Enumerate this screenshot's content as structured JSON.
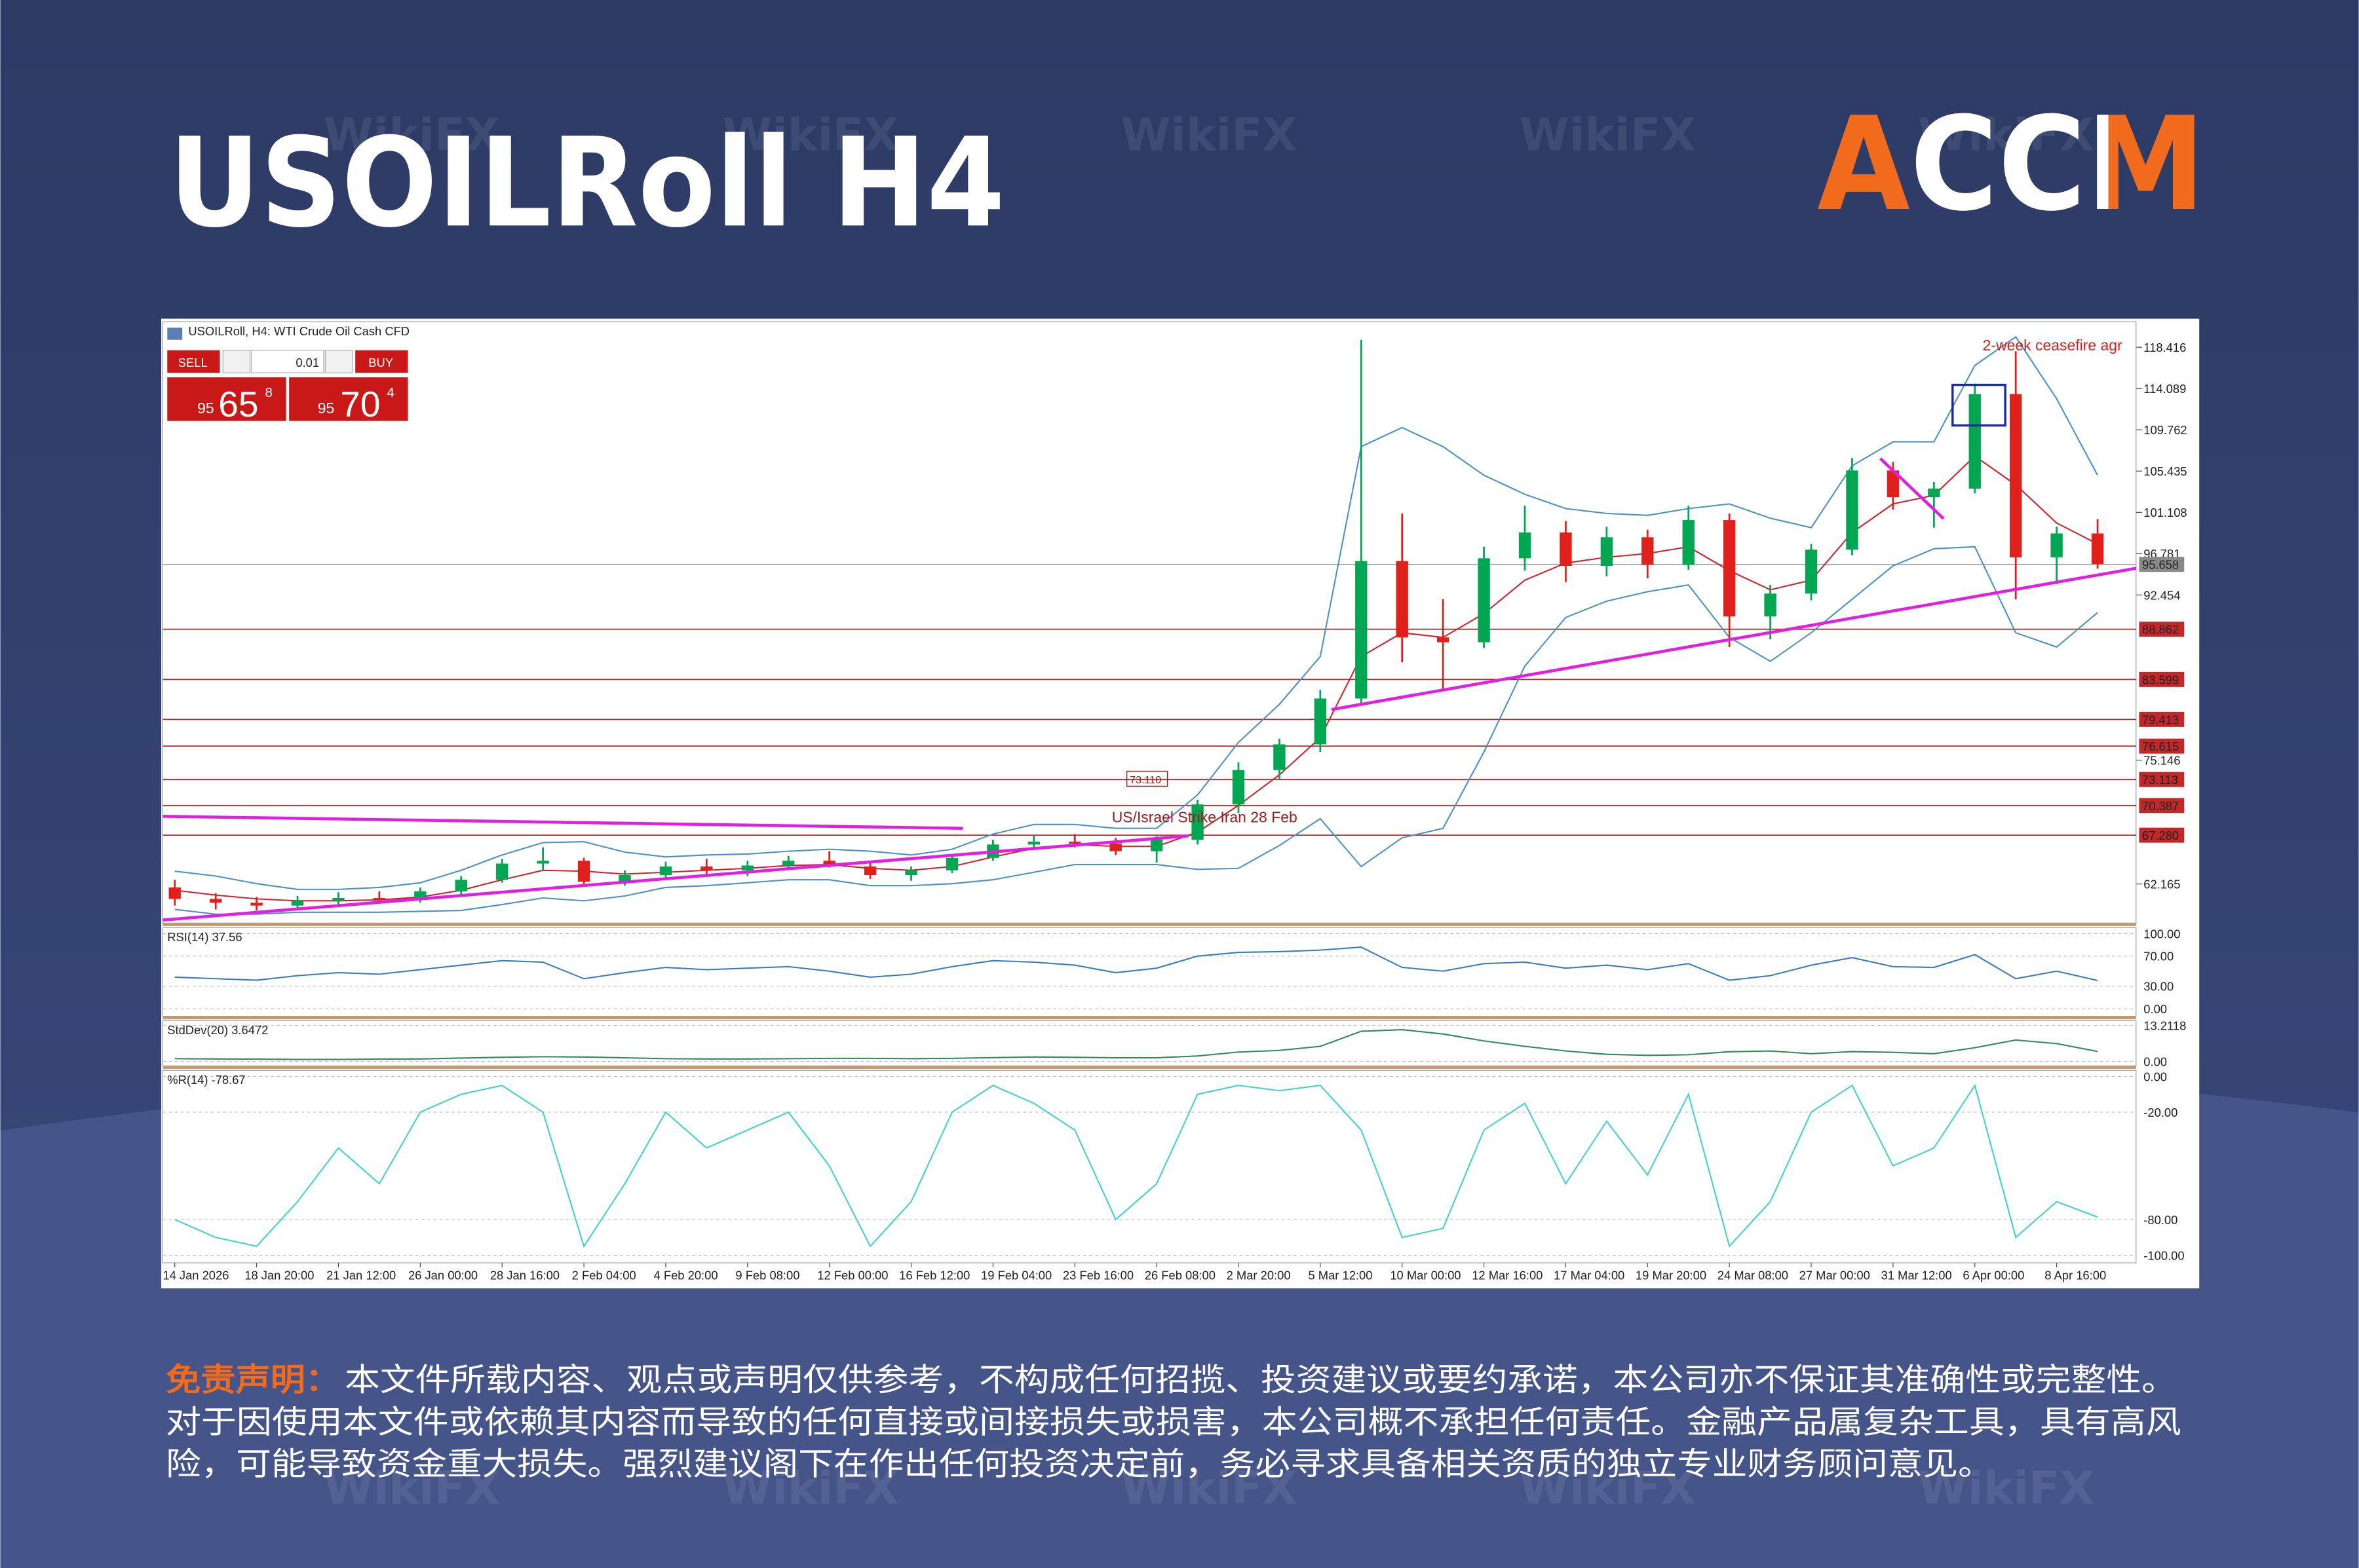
{
  "header": {
    "title": "USOILRoll H4",
    "logo": "ACCM"
  },
  "watermark": "WikiFX",
  "chart_data": {
    "type": "candlestick",
    "title": "USOILRoll, H4:  WTI Crude Oil Cash CFD",
    "trade_panel": {
      "sell": "SELL",
      "buy": "BUY",
      "volume": 0.01,
      "sell_price": {
        "big_figure": 95,
        "pips": 65,
        "point": 8
      },
      "buy_price": {
        "big_figure": 95,
        "pips": 70,
        "point": 4
      }
    },
    "categories": [
      "14 Jan 2026",
      null,
      "18 Jan 20:00",
      null,
      "21 Jan 12:00",
      null,
      "26 Jan 00:00",
      null,
      "28 Jan 16:00",
      null,
      "2 Feb 04:00",
      null,
      "4 Feb 20:00",
      null,
      "9 Feb 08:00",
      null,
      "12 Feb 00:00",
      null,
      "16 Feb 12:00",
      null,
      "19 Feb 04:00",
      null,
      "23 Feb 16:00",
      null,
      "26 Feb 08:00",
      null,
      "2 Mar 20:00",
      null,
      "5 Mar 12:00",
      null,
      "10 Mar 00:00",
      null,
      "12 Mar 16:00",
      null,
      "17 Mar 04:00",
      null,
      "19 Mar 20:00",
      null,
      "24 Mar 08:00",
      null,
      "27 Mar 00:00",
      null,
      "31 Mar 12:00",
      null,
      "6 Apr 00:00",
      null,
      "8 Apr 16:00",
      null
    ],
    "open": [
      61.8,
      60.6,
      60.2,
      59.9,
      60.4,
      60.7,
      60.5,
      61.4,
      62.6,
      64.3,
      64.6,
      62.4,
      63.1,
      64.0,
      63.6,
      64.1,
      64.6,
      64.0,
      63.1,
      63.6,
      64.9,
      66.3,
      66.6,
      66.4,
      65.6,
      66.8,
      70.5,
      74.1,
      76.8,
      81.6,
      96.0,
      88.0,
      87.5,
      96.3,
      99.0,
      95.5,
      98.5,
      95.6,
      100.3,
      90.2,
      92.6,
      97.2,
      105.5,
      102.7,
      103.6,
      113.5,
      96.4,
      98.9
    ],
    "high": [
      62.6,
      61.2,
      60.8,
      60.9,
      61.3,
      61.4,
      61.8,
      63.0,
      64.8,
      66.0,
      64.9,
      63.6,
      64.5,
      64.8,
      64.6,
      65.1,
      65.6,
      64.4,
      64.0,
      65.2,
      66.8,
      67.3,
      67.4,
      67.0,
      67.2,
      71.0,
      74.9,
      77.4,
      82.5,
      119.2,
      101.0,
      92.0,
      97.5,
      101.8,
      100.2,
      99.6,
      99.3,
      101.8,
      101.0,
      93.5,
      97.8,
      106.8,
      106.4,
      104.3,
      114.6,
      118.0,
      99.6,
      100.4
    ],
    "low": [
      59.9,
      59.5,
      59.4,
      59.6,
      60.0,
      60.1,
      60.2,
      61.0,
      62.3,
      63.6,
      61.9,
      62.0,
      62.7,
      63.2,
      63.0,
      63.7,
      63.9,
      62.7,
      62.5,
      63.3,
      64.6,
      65.7,
      66.0,
      65.2,
      64.4,
      66.3,
      69.6,
      73.2,
      76.0,
      81.0,
      85.4,
      82.6,
      86.9,
      95.0,
      93.8,
      94.4,
      94.2,
      95.1,
      87.0,
      87.8,
      91.9,
      96.6,
      101.4,
      99.5,
      103.1,
      92.0,
      93.6,
      95.2
    ],
    "close": [
      60.6,
      60.2,
      59.9,
      60.4,
      60.7,
      60.5,
      61.4,
      62.6,
      64.3,
      64.6,
      62.4,
      63.1,
      64.0,
      63.6,
      64.1,
      64.6,
      64.0,
      63.1,
      63.6,
      64.9,
      66.3,
      66.6,
      66.4,
      65.6,
      66.8,
      70.5,
      74.1,
      76.8,
      81.6,
      96.0,
      88.0,
      87.5,
      96.3,
      99.0,
      95.5,
      98.5,
      95.6,
      100.3,
      90.2,
      92.6,
      97.2,
      105.5,
      102.7,
      103.6,
      113.5,
      96.4,
      98.9,
      95.7
    ],
    "up_color": "#00a651",
    "down_color": "#e0201a",
    "moving_average": {
      "color": "#d0202a",
      "values": [
        61.5,
        61.0,
        60.6,
        60.4,
        60.4,
        60.5,
        60.8,
        61.5,
        62.6,
        63.6,
        63.5,
        63.2,
        63.4,
        63.6,
        63.8,
        64.1,
        64.2,
        63.8,
        63.6,
        64.0,
        65.0,
        65.9,
        66.3,
        66.1,
        66.1,
        67.6,
        70.4,
        73.6,
        77.5,
        86.0,
        88.5,
        88.0,
        90.5,
        94.0,
        95.8,
        96.4,
        96.8,
        97.5,
        95.0,
        93.0,
        94.0,
        99.0,
        102.0,
        102.9,
        107.0,
        104.0,
        100.0,
        97.8
      ]
    },
    "bollinger_upper": {
      "color": "#4a8fc8",
      "values": [
        63.5,
        63.0,
        62.2,
        61.6,
        61.6,
        61.8,
        62.3,
        63.6,
        65.2,
        66.5,
        66.6,
        65.5,
        65.0,
        65.2,
        65.3,
        65.6,
        65.8,
        65.6,
        65.2,
        65.8,
        67.4,
        68.4,
        68.4,
        68.0,
        68.0,
        71.5,
        77.0,
        81.0,
        86.0,
        108.0,
        110.0,
        108.0,
        105.0,
        103.0,
        101.5,
        101.0,
        100.8,
        101.5,
        102.0,
        100.5,
        99.5,
        106.0,
        108.5,
        108.5,
        116.5,
        119.5,
        113.0,
        105.0
      ]
    },
    "bollinger_lower": {
      "color": "#4a8fc8",
      "values": [
        59.5,
        59.0,
        59.0,
        59.2,
        59.2,
        59.2,
        59.3,
        59.4,
        60.0,
        60.7,
        60.4,
        60.9,
        61.8,
        62.0,
        62.3,
        62.6,
        62.6,
        62.0,
        62.0,
        62.2,
        62.6,
        63.4,
        64.2,
        64.2,
        64.2,
        63.7,
        63.8,
        66.2,
        69.0,
        64.0,
        67.0,
        68.0,
        76.0,
        85.0,
        90.1,
        91.8,
        92.8,
        93.5,
        88.0,
        85.5,
        88.5,
        92.0,
        95.5,
        97.3,
        97.5,
        88.5,
        87.0,
        90.6
      ]
    },
    "ylim": [
      58.07,
      121.09
    ],
    "yticks": [
      118.416,
      114.089,
      109.762,
      105.435,
      101.108,
      96.781,
      92.454,
      75.146,
      62.165
    ],
    "levels": [
      88.862,
      83.599,
      79.413,
      76.615,
      73.113,
      70.387,
      {
        "value": 67.28,
        "label": "67.280"
      }
    ],
    "level_color": "#c0282a",
    "current_price": 95.658,
    "annotations": [
      {
        "text": "2-week ceasefire agr",
        "color": "#d02020"
      },
      {
        "text": "US/Israel Strike Iran 28 Feb",
        "color": "#9a1a1a"
      },
      {
        "text": "73.110",
        "color": "#9a1a1a"
      }
    ],
    "indicators": [
      {
        "label": "RSI(14) 37.56",
        "color": "#3a7abf",
        "ylim": [
          0,
          100
        ],
        "yticks": [
          {
            "value": 100,
            "label": "100.00"
          },
          {
            "value": 70,
            "label": "70.00"
          },
          {
            "value": 30,
            "label": "30.00"
          },
          {
            "value": 0,
            "label": "0.00"
          }
        ],
        "values": [
          42,
          40,
          38,
          44,
          48,
          46,
          52,
          58,
          64,
          62,
          40,
          48,
          55,
          52,
          54,
          56,
          50,
          42,
          46,
          56,
          64,
          62,
          58,
          48,
          54,
          70,
          75,
          76,
          78,
          82,
          55,
          50,
          60,
          62,
          54,
          58,
          52,
          60,
          38,
          44,
          58,
          68,
          56,
          55,
          72,
          40,
          50,
          37.56
        ]
      },
      {
        "label": "StdDev(20) 3.6472",
        "color": "#2e8b57",
        "ylim": [
          0,
          13.2118
        ],
        "yticks": [
          13.2118,
          {
            "value": 0,
            "label": "0.00"
          }
        ],
        "values": [
          1.0,
          0.9,
          0.8,
          0.7,
          0.7,
          0.8,
          0.9,
          1.2,
          1.5,
          1.7,
          1.6,
          1.3,
          1.0,
          0.9,
          0.9,
          1.0,
          1.1,
          1.1,
          1.0,
          1.1,
          1.4,
          1.6,
          1.5,
          1.3,
          1.3,
          2.0,
          3.4,
          4.0,
          5.5,
          11.0,
          11.6,
          10.0,
          7.5,
          5.5,
          3.8,
          2.6,
          2.2,
          2.4,
          3.5,
          3.8,
          2.8,
          3.6,
          3.3,
          2.8,
          5.0,
          7.8,
          6.5,
          3.6472
        ]
      },
      {
        "label": "%R(14) -78.67",
        "color": "#40d0d0",
        "ylim": [
          -100,
          0
        ],
        "yticks": [
          {
            "value": 0,
            "label": "0.00"
          },
          {
            "value": -20,
            "label": "-20.00"
          },
          {
            "value": -80,
            "label": "-80.00"
          },
          {
            "value": -100,
            "label": "-100.00"
          }
        ],
        "values": [
          -80,
          -90,
          -95,
          -70,
          -40,
          -60,
          -20,
          -10,
          -5,
          -20,
          -95,
          -60,
          -20,
          -40,
          -30,
          -20,
          -50,
          -95,
          -70,
          -20,
          -5,
          -15,
          -30,
          -80,
          -60,
          -10,
          -5,
          -8,
          -5,
          -30,
          -90,
          -85,
          -30,
          -15,
          -60,
          -25,
          -55,
          -10,
          -95,
          -70,
          -20,
          -5,
          -50,
          -40,
          -5,
          -90,
          -70,
          -78.67
        ]
      }
    ]
  },
  "disclaimer": {
    "label": "免责声明：",
    "lines": [
      "本文件所载内容、观点或声明仅供参考，不构成任何招揽、投资建议或要约承诺，本公司亦不保证其准确性或完整性。",
      "对于因使用本文件或依赖其内容而导致的任何直接或间接损失或损害，本公司概不承担任何责任。金融产品属复杂工具，具有高风",
      "险，可能导致资金重大损失。强烈建议阁下在作出任何投资决定前，务必寻求具备相关资质的独立专业财务顾问意见。"
    ]
  }
}
